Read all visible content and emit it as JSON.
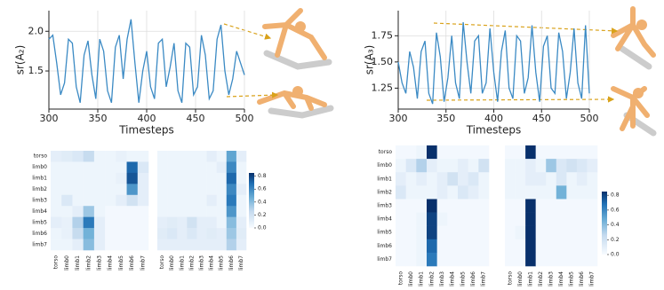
{
  "chart_data": [
    {
      "type": "line",
      "ylabel": "sr(A₂)",
      "xlabel": "Timesteps",
      "color": "#3b8ac4",
      "x": [
        300,
        304,
        308,
        312,
        316,
        320,
        324,
        328,
        332,
        336,
        340,
        344,
        348,
        352,
        356,
        360,
        364,
        368,
        372,
        376,
        380,
        384,
        388,
        392,
        396,
        400,
        404,
        408,
        412,
        416,
        420,
        424,
        428,
        432,
        436,
        440,
        444,
        448,
        452,
        456,
        460,
        464,
        468,
        472,
        476,
        480,
        484,
        488,
        492,
        496,
        500
      ],
      "values": [
        1.9,
        1.95,
        1.6,
        1.2,
        1.35,
        1.9,
        1.85,
        1.3,
        1.1,
        1.7,
        1.88,
        1.45,
        1.15,
        1.9,
        1.75,
        1.25,
        1.1,
        1.8,
        1.95,
        1.4,
        1.9,
        2.15,
        1.6,
        1.1,
        1.5,
        1.75,
        1.3,
        1.15,
        1.85,
        1.9,
        1.3,
        1.55,
        1.85,
        1.25,
        1.1,
        1.85,
        1.8,
        1.2,
        1.3,
        1.95,
        1.7,
        1.15,
        1.25,
        1.9,
        2.08,
        1.5,
        1.2,
        1.4,
        1.75,
        1.6,
        1.45
      ],
      "xlim": [
        300,
        500
      ],
      "xticks": [
        300,
        350,
        400,
        450,
        500
      ],
      "ylim": [
        1.02,
        2.26
      ],
      "yticks": [
        1.5,
        {
          "value": 2,
          "label": "2.0"
        }
      ],
      "grid": true
    },
    {
      "type": "line",
      "ylabel": "sr(A₃)",
      "xlabel": "Timesteps",
      "color": "#3b8ac4",
      "x": [
        300,
        304,
        308,
        312,
        316,
        320,
        324,
        328,
        332,
        336,
        340,
        344,
        348,
        352,
        356,
        360,
        364,
        368,
        372,
        376,
        380,
        384,
        388,
        392,
        396,
        400,
        404,
        408,
        412,
        416,
        420,
        424,
        428,
        432,
        436,
        440,
        444,
        448,
        452,
        456,
        460,
        464,
        468,
        472,
        476,
        480,
        484,
        488,
        492,
        496,
        500
      ],
      "values": [
        1.5,
        1.3,
        1.2,
        1.6,
        1.45,
        1.15,
        1.6,
        1.7,
        1.2,
        1.1,
        1.78,
        1.55,
        1.12,
        1.35,
        1.75,
        1.3,
        1.15,
        1.88,
        1.5,
        1.2,
        1.7,
        1.75,
        1.2,
        1.3,
        1.82,
        1.4,
        1.12,
        1.6,
        1.8,
        1.25,
        1.15,
        1.75,
        1.7,
        1.2,
        1.35,
        1.85,
        1.4,
        1.12,
        1.65,
        1.75,
        1.25,
        1.2,
        1.78,
        1.6,
        1.15,
        1.4,
        1.82,
        1.3,
        1.15,
        1.85,
        1.2
      ],
      "xlim": [
        300,
        500
      ],
      "xticks": [
        300,
        350,
        400,
        450,
        500
      ],
      "ylim": [
        1.05,
        1.99
      ],
      "yticks": [
        1.25,
        {
          "value": 1.5,
          "label": "1.50"
        },
        1.75
      ],
      "grid": true
    },
    {
      "type": "heatmap",
      "zlim": [
        0,
        0.85
      ],
      "x_categories": [
        "torso",
        "limb0",
        "limb1",
        "limb2",
        "limb3",
        "limb4",
        "limb5",
        "limb6",
        "limb7"
      ],
      "y_categories": [
        "torso",
        "limb0",
        "limb1",
        "limb2",
        "limb3",
        "limb4",
        "limb5",
        "limb6",
        "limb7"
      ],
      "values": [
        [
          0.1,
          0.12,
          0.15,
          0.25,
          0.05,
          0.05,
          0.08,
          0.05,
          0.05
        ],
        [
          0.05,
          0.05,
          0.05,
          0.05,
          0.05,
          0.05,
          0.05,
          0.7,
          0.15
        ],
        [
          0.05,
          0.05,
          0.05,
          0.05,
          0.05,
          0.05,
          0.08,
          0.75,
          0.1
        ],
        [
          0.05,
          0.05,
          0.05,
          0.05,
          0.05,
          0.05,
          0.05,
          0.55,
          0.1
        ],
        [
          0.05,
          0.15,
          0.05,
          0.05,
          0.05,
          0.05,
          0.1,
          0.2,
          0.1
        ],
        [
          0.05,
          0.05,
          0.1,
          0.35,
          0.05,
          0.02,
          0.02,
          0.02,
          0.02
        ],
        [
          0.1,
          0.08,
          0.3,
          0.65,
          0.1,
          0.02,
          0.02,
          0.02,
          0.02
        ],
        [
          0.05,
          0.08,
          0.25,
          0.45,
          0.1,
          0.02,
          0.02,
          0.02,
          0.02
        ],
        [
          0.05,
          0.05,
          0.1,
          0.4,
          0.1,
          0.02,
          0.02,
          0.02,
          0.02
        ]
      ]
    },
    {
      "type": "heatmap",
      "zlim": [
        0,
        0.85
      ],
      "x_categories": [
        "torso",
        "limb0",
        "limb1",
        "limb2",
        "limb3",
        "limb4",
        "limb5",
        "limb6",
        "limb7"
      ],
      "values": [
        [
          0.05,
          0.05,
          0.05,
          0.05,
          0.05,
          0.1,
          0.05,
          0.5,
          0.1
        ],
        [
          0.05,
          0.05,
          0.05,
          0.05,
          0.05,
          0.05,
          0.1,
          0.6,
          0.05
        ],
        [
          0.05,
          0.05,
          0.05,
          0.05,
          0.05,
          0.05,
          0.05,
          0.7,
          0.05
        ],
        [
          0.05,
          0.05,
          0.05,
          0.05,
          0.05,
          0.05,
          0.05,
          0.6,
          0.1
        ],
        [
          0.05,
          0.05,
          0.05,
          0.05,
          0.05,
          0.1,
          0.05,
          0.65,
          0.05
        ],
        [
          0.05,
          0.05,
          0.05,
          0.05,
          0.05,
          0.05,
          0.05,
          0.55,
          0.05
        ],
        [
          0.1,
          0.12,
          0.1,
          0.2,
          0.1,
          0.1,
          0.05,
          0.4,
          0.1
        ],
        [
          0.12,
          0.15,
          0.1,
          0.15,
          0.1,
          0.12,
          0.1,
          0.35,
          0.12
        ],
        [
          0.1,
          0.1,
          0.1,
          0.1,
          0.1,
          0.1,
          0.1,
          0.3,
          0.1
        ]
      ],
      "colorbar_ticks": [
        {
          "value": 0,
          "label": "0.0"
        },
        0.2,
        0.4,
        0.6,
        0.8
      ]
    },
    {
      "type": "heatmap",
      "zlim": [
        0,
        0.85
      ],
      "x_categories": [
        "torso",
        "limb0",
        "limb1",
        "limb2",
        "limb3",
        "limb4",
        "limb5",
        "limb6",
        "limb7"
      ],
      "y_categories": [
        "torso",
        "limb0",
        "limb1",
        "limb2",
        "limb3",
        "limb4",
        "limb5",
        "limb6",
        "limb7"
      ],
      "values": [
        [
          0.02,
          0.02,
          0.05,
          0.85,
          0.02,
          0.02,
          0.02,
          0.02,
          0.02
        ],
        [
          0.05,
          0.15,
          0.3,
          0.1,
          0.05,
          0.05,
          0.1,
          0.05,
          0.2
        ],
        [
          0.1,
          0.05,
          0.1,
          0.05,
          0.1,
          0.2,
          0.1,
          0.15,
          0.05
        ],
        [
          0.15,
          0.05,
          0.05,
          0.05,
          0.1,
          0.05,
          0.15,
          0.1,
          0.05
        ],
        [
          0.02,
          0.02,
          0.02,
          0.85,
          0.02,
          0.02,
          0.02,
          0.02,
          0.02
        ],
        [
          0.02,
          0.02,
          0.05,
          0.8,
          0.05,
          0.02,
          0.02,
          0.02,
          0.02
        ],
        [
          0.02,
          0.02,
          0.05,
          0.8,
          0.02,
          0.02,
          0.02,
          0.02,
          0.02
        ],
        [
          0.02,
          0.02,
          0.05,
          0.7,
          0.02,
          0.02,
          0.02,
          0.02,
          0.02
        ],
        [
          0.02,
          0.02,
          0.05,
          0.65,
          0.02,
          0.02,
          0.02,
          0.02,
          0.02
        ]
      ]
    },
    {
      "type": "heatmap",
      "zlim": [
        0,
        0.85
      ],
      "x_categories": [
        "torso",
        "limb0",
        "limb1",
        "limb2",
        "limb3",
        "limb4",
        "limb5",
        "limb6",
        "limb7"
      ],
      "values": [
        [
          0.02,
          0.02,
          0.85,
          0.02,
          0.02,
          0.02,
          0.02,
          0.02,
          0.02
        ],
        [
          0.05,
          0.05,
          0.1,
          0.05,
          0.35,
          0.15,
          0.2,
          0.15,
          0.1
        ],
        [
          0.05,
          0.05,
          0.1,
          0.1,
          0.05,
          0.15,
          0.05,
          0.1,
          0.05
        ],
        [
          0.05,
          0.05,
          0.05,
          0.05,
          0.05,
          0.45,
          0.05,
          0.05,
          0.05
        ],
        [
          0.02,
          0.02,
          0.85,
          0.02,
          0.02,
          0.02,
          0.02,
          0.02,
          0.02
        ],
        [
          0.02,
          0.02,
          0.85,
          0.02,
          0.02,
          0.02,
          0.02,
          0.02,
          0.02
        ],
        [
          0.02,
          0.05,
          0.85,
          0.02,
          0.02,
          0.02,
          0.02,
          0.02,
          0.02
        ],
        [
          0.02,
          0.02,
          0.85,
          0.02,
          0.02,
          0.02,
          0.02,
          0.02,
          0.02
        ],
        [
          0.02,
          0.02,
          0.85,
          0.02,
          0.02,
          0.02,
          0.02,
          0.02,
          0.02
        ]
      ],
      "colorbar_ticks": [
        {
          "value": 0,
          "label": "0.0"
        },
        0.2,
        0.4,
        0.6,
        0.8
      ]
    }
  ]
}
